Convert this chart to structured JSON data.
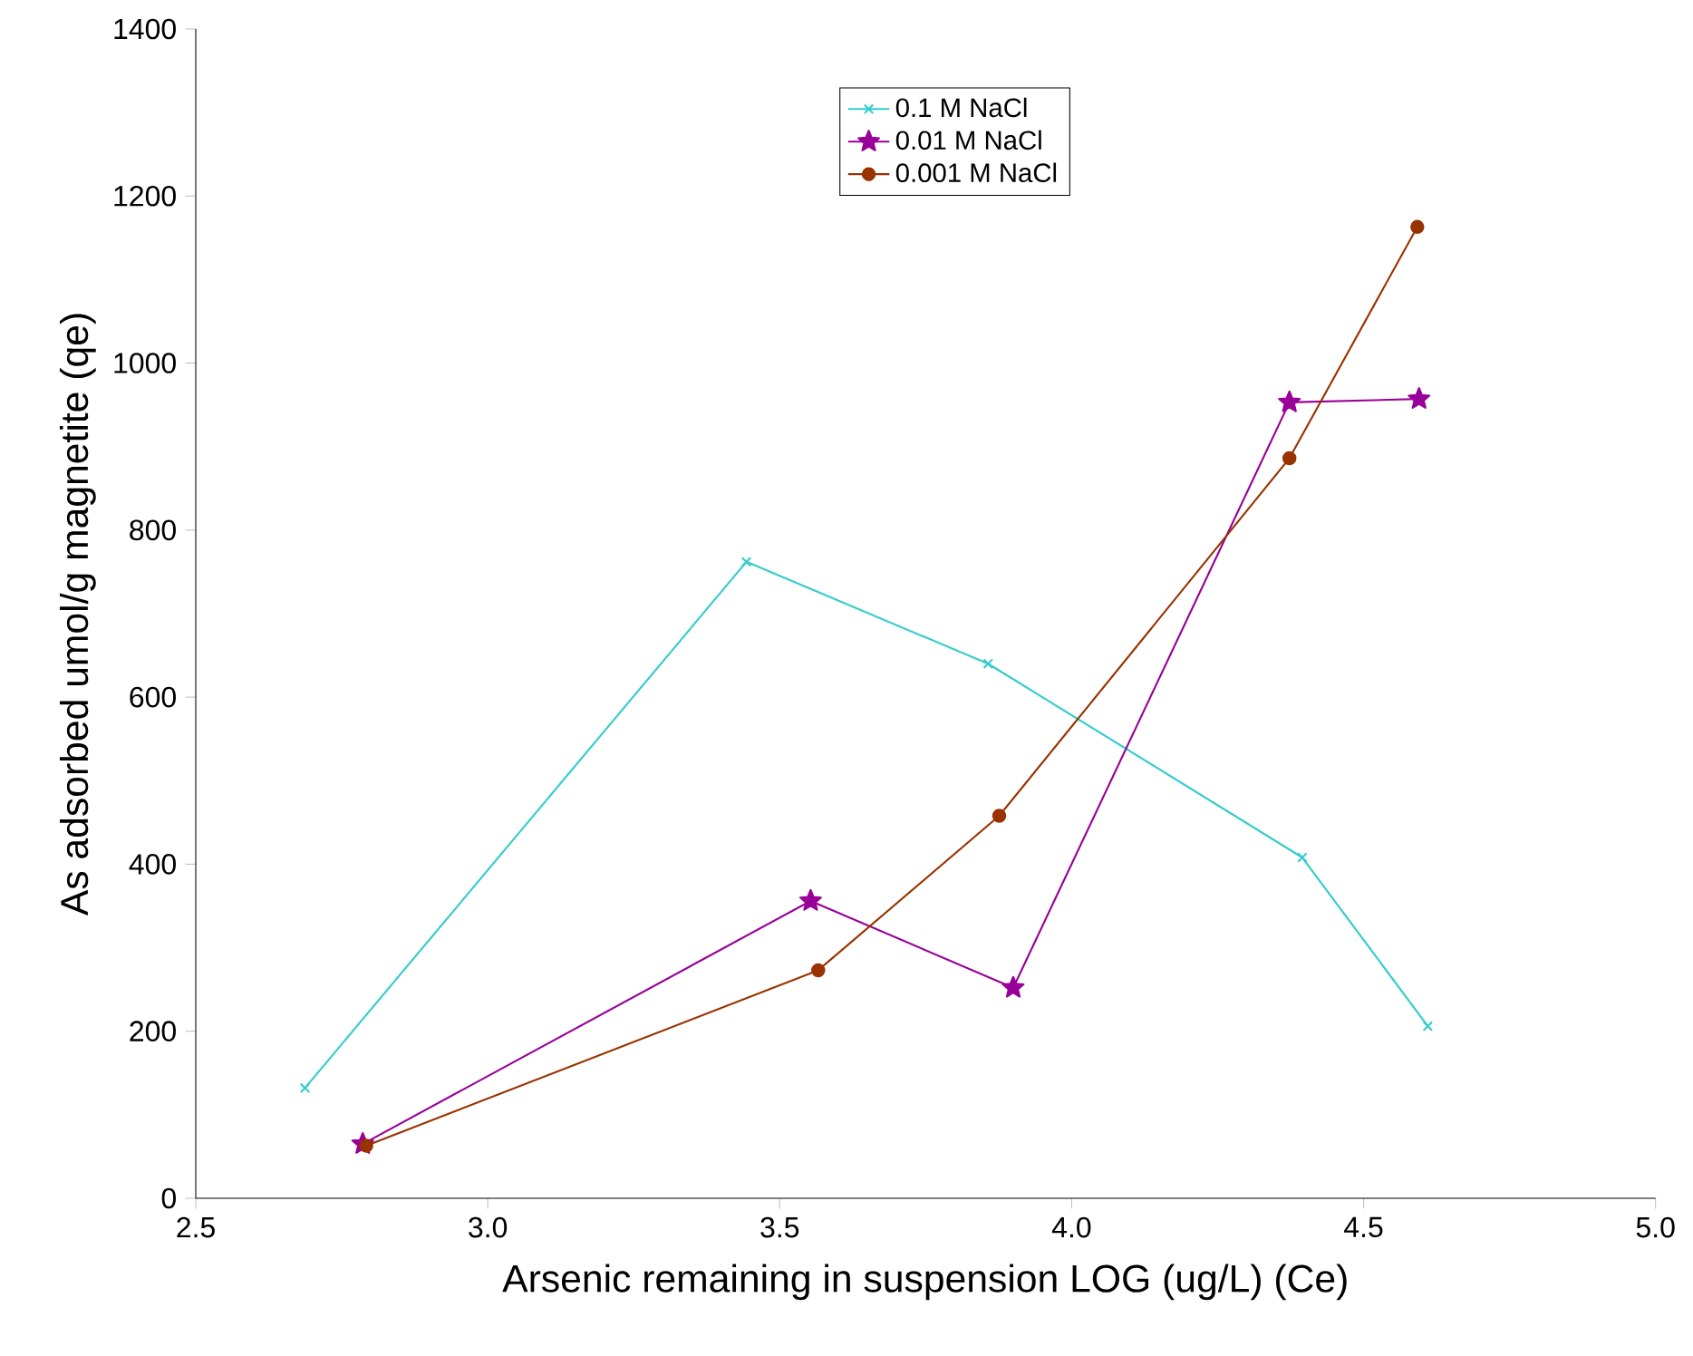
{
  "chart_data": {
    "type": "line",
    "xlabel": "Arsenic remaining in suspension LOG (ug/L) (Ce)",
    "ylabel": "As adsorbed umol/g magnetite (qe)",
    "xlim": [
      2.5,
      5.0
    ],
    "xticks": [
      {
        "value": 2.5,
        "label": "2.5"
      },
      {
        "value": 3.0,
        "label": "3.0"
      },
      {
        "value": 3.5,
        "label": "3.5"
      },
      {
        "value": 4.0,
        "label": "4.0"
      },
      {
        "value": 4.5,
        "label": "4.5"
      },
      {
        "value": 5.0,
        "label": "5.0"
      }
    ],
    "ylim": [
      0,
      1400
    ],
    "yticks": [
      0,
      200,
      400,
      600,
      800,
      1000,
      1200,
      1400
    ],
    "grid": false,
    "legend": "top",
    "series": [
      {
        "name": "0.1 M NaCl",
        "color": "#33cccc",
        "marker": "cross",
        "x": [
          2.687,
          3.443,
          3.857,
          4.395,
          4.61
        ],
        "values": [
          132,
          762,
          640,
          408,
          206
        ]
      },
      {
        "name": "0.01 M NaCl",
        "color": "#990099",
        "marker": "star",
        "x": [
          2.786,
          3.553,
          3.9,
          4.373,
          4.595
        ],
        "values": [
          65,
          356,
          252,
          953,
          957
        ]
      },
      {
        "name": "0.001 M NaCl",
        "color": "#993300",
        "marker": "circle",
        "x": [
          2.792,
          3.566,
          3.876,
          4.373,
          4.592
        ],
        "values": [
          63,
          273,
          458,
          886,
          1163
        ]
      }
    ]
  }
}
